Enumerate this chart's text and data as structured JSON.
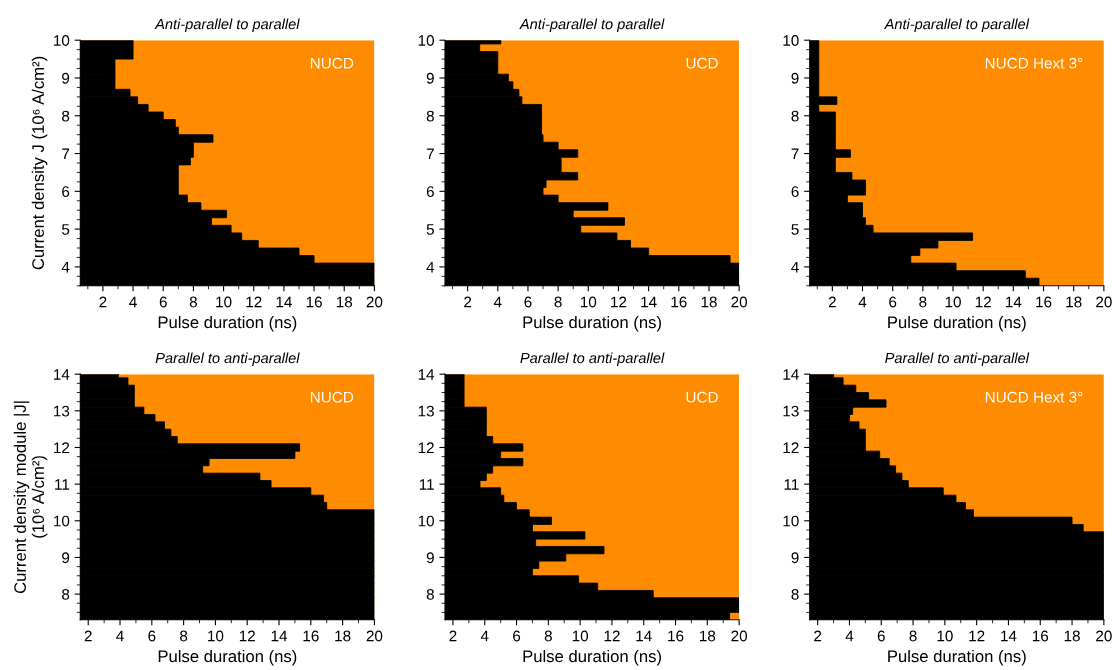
{
  "chart_data": [
    {
      "type": "bar",
      "orientation": "horizontal",
      "title": "Anti-parallel to parallel",
      "xlabel": "Pulse duration (ns)",
      "ylabel": "Current density J (10⁶ A/cm²)",
      "annotations": [
        "NUCD"
      ],
      "x": [
        3.6,
        3.8,
        4.0,
        4.2,
        4.4,
        4.6,
        4.8,
        5.0,
        5.2,
        5.4,
        5.6,
        5.8,
        6.0,
        6.2,
        6.4,
        6.6,
        6.8,
        7.0,
        7.2,
        7.4,
        7.6,
        7.8,
        8.0,
        8.2,
        8.4,
        8.6,
        8.8,
        9.0,
        9.2,
        9.4,
        9.6,
        9.8,
        10.0
      ],
      "series": [
        {
          "color": "#000000",
          "values": [
            20,
            20,
            20,
            16,
            15,
            12.3,
            11.2,
            10.5,
            9.2,
            10.2,
            8.5,
            7.6,
            7.0,
            7.0,
            7.0,
            7.0,
            7.8,
            8.0,
            8.0,
            9.3,
            7.0,
            6.8,
            6.0,
            5.0,
            4.3,
            3.8,
            2.8,
            2.8,
            2.8,
            2.8,
            4.0,
            4.0,
            4.0
          ]
        }
      ],
      "bands": [
        {
          "axis": "x",
          "from": 0.5,
          "to": 20,
          "color": "#ff8c00"
        }
      ],
      "xlim": [
        0.5,
        20
      ],
      "xticks": [
        2,
        4,
        6,
        8,
        10,
        12,
        14,
        16,
        18,
        20
      ],
      "ylim": [
        3.5,
        10
      ],
      "yticks": [
        4,
        5,
        6,
        7,
        8,
        9,
        10
      ],
      "grid": false,
      "legend": false
    },
    {
      "type": "bar",
      "orientation": "horizontal",
      "title": "Anti-parallel to parallel",
      "xlabel": "Pulse duration (ns)",
      "annotations": [
        "UCD"
      ],
      "x": [
        3.6,
        3.8,
        4.0,
        4.2,
        4.4,
        4.6,
        4.8,
        5.0,
        5.2,
        5.4,
        5.6,
        5.8,
        6.0,
        6.2,
        6.4,
        6.6,
        6.8,
        7.0,
        7.2,
        7.4,
        7.6,
        7.8,
        8.0,
        8.2,
        8.4,
        8.6,
        8.8,
        9.0,
        9.2,
        9.4,
        9.6,
        9.8,
        10.0
      ],
      "series": [
        {
          "color": "#000000",
          "values": [
            20,
            20,
            20,
            19.4,
            14.0,
            12.8,
            11.9,
            9.5,
            12.4,
            9.0,
            11.3,
            8.0,
            7.0,
            7.2,
            9.3,
            8.2,
            8.2,
            9.3,
            8.0,
            7.0,
            6.9,
            6.9,
            6.9,
            6.9,
            5.6,
            5.4,
            5.0,
            4.7,
            4.0,
            4.0,
            4.0,
            2.8,
            4.2
          ]
        }
      ],
      "bands": [
        {
          "axis": "x",
          "from": 0.5,
          "to": 20,
          "color": "#ff8c00"
        }
      ],
      "xlim": [
        0.5,
        20
      ],
      "xticks": [
        2,
        4,
        6,
        8,
        10,
        12,
        14,
        16,
        18,
        20
      ],
      "ylim": [
        3.5,
        10
      ],
      "yticks": [
        4,
        5,
        6,
        7,
        8,
        9,
        10
      ],
      "grid": false,
      "legend": false
    },
    {
      "type": "bar",
      "orientation": "horizontal",
      "title": "Anti-parallel to parallel",
      "xlabel": "Pulse duration (ns)",
      "annotations": [
        "NUCD Hext 3°"
      ],
      "x": [
        3.6,
        3.8,
        4.0,
        4.2,
        4.4,
        4.6,
        4.8,
        5.0,
        5.2,
        5.4,
        5.6,
        5.8,
        6.0,
        6.2,
        6.4,
        6.6,
        6.8,
        7.0,
        7.2,
        7.4,
        7.6,
        7.8,
        8.0,
        8.2,
        8.4,
        8.6,
        8.8,
        9.0,
        9.2,
        9.4,
        9.6,
        9.8,
        10.0
      ],
      "series": [
        {
          "color": "#000000",
          "values": [
            15.7,
            14.8,
            10.2,
            7.2,
            7.8,
            9.0,
            11.3,
            4.7,
            4.2,
            4.0,
            4.0,
            3.0,
            4.2,
            4.2,
            3.3,
            2.2,
            2.2,
            3.2,
            2.2,
            2.2,
            2.2,
            2.2,
            2.2,
            1.1,
            2.3,
            1.1,
            1.1,
            1.1,
            1.1,
            1.1,
            1.1,
            1.1,
            1.1
          ]
        }
      ],
      "bands": [
        {
          "axis": "x",
          "from": 0.5,
          "to": 20,
          "color": "#ff8c00"
        }
      ],
      "xlim": [
        0.5,
        20
      ],
      "xticks": [
        2,
        4,
        6,
        8,
        10,
        12,
        14,
        16,
        18,
        20
      ],
      "ylim": [
        3.5,
        10
      ],
      "yticks": [
        4,
        5,
        6,
        7,
        8,
        9,
        10
      ],
      "grid": false,
      "legend": false
    },
    {
      "type": "bar",
      "orientation": "horizontal",
      "title": "Parallel to anti-parallel",
      "xlabel": "Pulse duration (ns)",
      "ylabel": "Current density module |J|\n(10⁶ A/cm²)",
      "annotations": [
        "NUCD"
      ],
      "x": [
        7.4,
        7.6,
        7.8,
        8.0,
        8.2,
        8.4,
        8.6,
        8.8,
        9.0,
        9.2,
        9.4,
        9.6,
        9.8,
        10.0,
        10.2,
        10.4,
        10.6,
        10.8,
        11.0,
        11.2,
        11.4,
        11.6,
        11.8,
        12.0,
        12.2,
        12.4,
        12.6,
        12.8,
        13.0,
        13.2,
        13.4,
        13.6,
        13.8,
        14.0
      ],
      "series": [
        {
          "color": "#000000",
          "values": [
            20,
            20,
            20,
            20,
            20,
            20,
            20,
            20,
            20,
            20,
            20,
            20,
            20,
            20,
            20,
            17.0,
            16.8,
            16.0,
            13.5,
            12.8,
            9.2,
            9.6,
            15.0,
            15.3,
            7.6,
            7.2,
            6.8,
            6.2,
            5.5,
            4.9,
            4.9,
            4.9,
            4.5,
            3.9
          ]
        }
      ],
      "bands": [
        {
          "axis": "x",
          "from": 1.5,
          "to": 20,
          "color": "#ff8c00"
        }
      ],
      "xlim": [
        1.5,
        20
      ],
      "xticks": [
        2,
        4,
        6,
        8,
        10,
        12,
        14,
        16,
        18,
        20
      ],
      "ylim": [
        7.3,
        14
      ],
      "yticks": [
        8,
        9,
        10,
        11,
        12,
        13,
        14
      ],
      "grid": false,
      "legend": false
    },
    {
      "type": "bar",
      "orientation": "horizontal",
      "title": "Parallel to anti-parallel",
      "xlabel": "Pulse duration (ns)",
      "annotations": [
        "UCD"
      ],
      "x": [
        7.4,
        7.6,
        7.8,
        8.0,
        8.2,
        8.4,
        8.6,
        8.8,
        9.0,
        9.2,
        9.4,
        9.6,
        9.8,
        10.0,
        10.2,
        10.4,
        10.6,
        10.8,
        11.0,
        11.2,
        11.4,
        11.6,
        11.8,
        12.0,
        12.2,
        12.4,
        12.6,
        12.8,
        13.0,
        13.2,
        13.4,
        13.6,
        13.8,
        14.0
      ],
      "series": [
        {
          "color": "#000000",
          "values": [
            19.4,
            20,
            20,
            14.6,
            11.1,
            9.9,
            7.0,
            7.4,
            9.1,
            11.5,
            7.2,
            10.3,
            7.0,
            8.2,
            6.8,
            6.0,
            5.2,
            5.0,
            3.7,
            4.1,
            4.5,
            6.4,
            5.0,
            6.4,
            4.5,
            4.1,
            4.1,
            4.1,
            4.1,
            2.7,
            2.7,
            2.7,
            2.7,
            2.7
          ]
        }
      ],
      "bands": [
        {
          "axis": "x",
          "from": 1.5,
          "to": 20,
          "color": "#ff8c00"
        }
      ],
      "xlim": [
        1.5,
        20
      ],
      "xticks": [
        2,
        4,
        6,
        8,
        10,
        12,
        14,
        16,
        18,
        20
      ],
      "ylim": [
        7.3,
        14
      ],
      "yticks": [
        8,
        9,
        10,
        11,
        12,
        13,
        14
      ],
      "grid": false,
      "legend": false
    },
    {
      "type": "bar",
      "orientation": "horizontal",
      "title": "Parallel to anti-parallel",
      "xlabel": "Pulse duration (ns)",
      "annotations": [
        "NUCD Hext 3°"
      ],
      "x": [
        7.4,
        7.6,
        7.8,
        8.0,
        8.2,
        8.4,
        8.6,
        8.8,
        9.0,
        9.2,
        9.4,
        9.6,
        9.8,
        10.0,
        10.2,
        10.4,
        10.6,
        10.8,
        11.0,
        11.2,
        11.4,
        11.6,
        11.8,
        12.0,
        12.2,
        12.4,
        12.6,
        12.8,
        13.0,
        13.2,
        13.4,
        13.6,
        13.8,
        14.0
      ],
      "series": [
        {
          "color": "#000000",
          "values": [
            20,
            20,
            20,
            20,
            20,
            20,
            20,
            20,
            20,
            20,
            20,
            20,
            18.7,
            18.0,
            11.8,
            11.3,
            10.7,
            9.9,
            7.7,
            7.3,
            6.9,
            6.5,
            5.9,
            5.0,
            5.0,
            5.0,
            4.6,
            4.0,
            4.2,
            6.3,
            5.2,
            4.4,
            3.6,
            3.0
          ]
        }
      ],
      "bands": [
        {
          "axis": "x",
          "from": 1.5,
          "to": 20,
          "color": "#ff8c00"
        }
      ],
      "xlim": [
        1.5,
        20
      ],
      "xticks": [
        2,
        4,
        6,
        8,
        10,
        12,
        14,
        16,
        18,
        20
      ],
      "ylim": [
        7.3,
        14
      ],
      "yticks": [
        8,
        9,
        10,
        11,
        12,
        13,
        14
      ],
      "grid": false,
      "legend": false
    }
  ]
}
